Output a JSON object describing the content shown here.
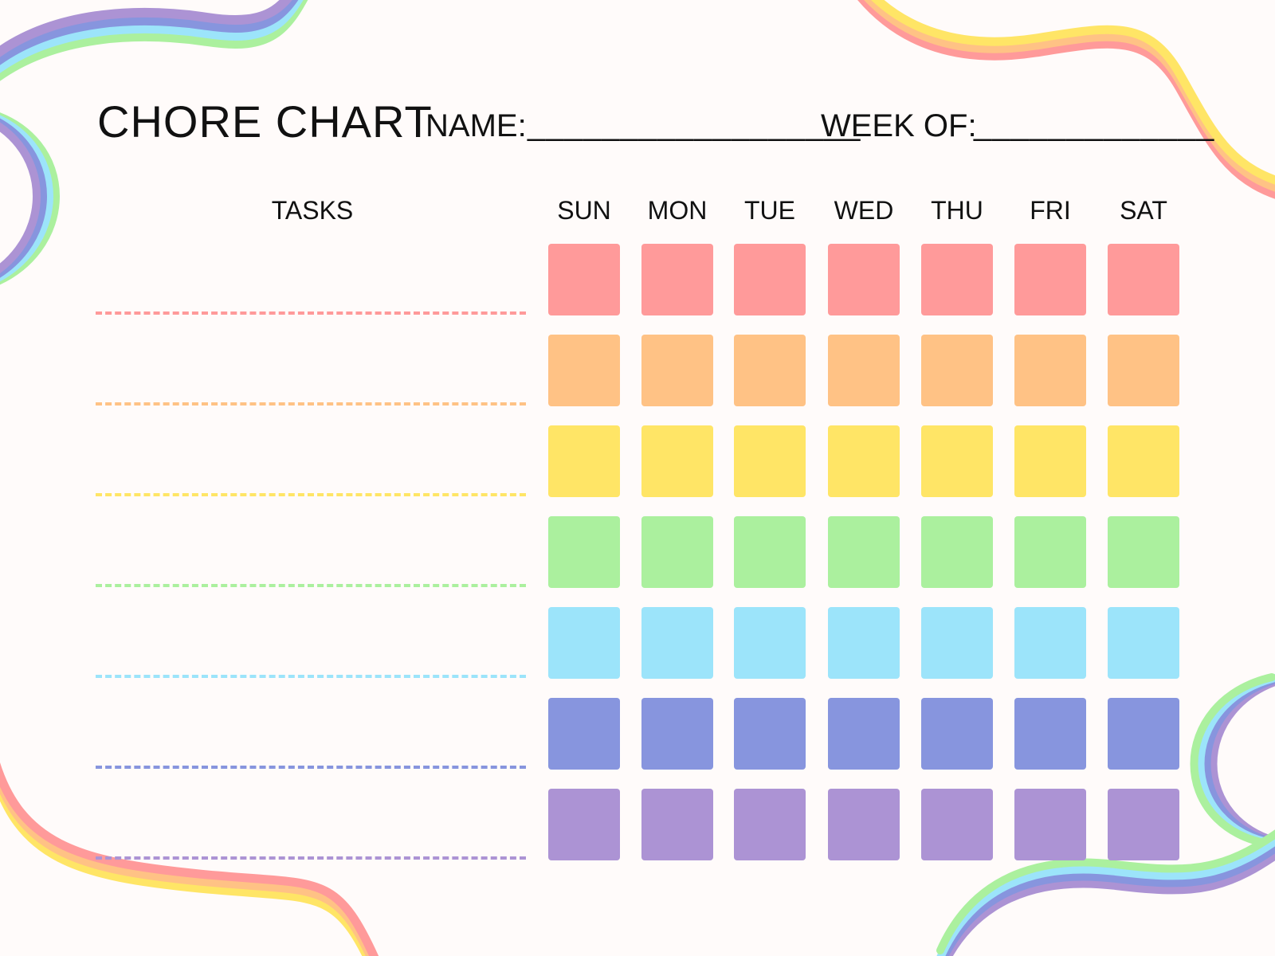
{
  "header": {
    "title": "CHORE CHART",
    "name_label": "NAME:",
    "name_blank": "__________________",
    "week_label": "WEEK OF:",
    "week_blank": "_____________"
  },
  "tasks_header": "TASKS",
  "days": [
    "SUN",
    "MON",
    "TUE",
    "WED",
    "THU",
    "FRI",
    "SAT"
  ],
  "row_colors": [
    "#ff9a9a",
    "#ffc285",
    "#ffe566",
    "#abf09e",
    "#9ce4fa",
    "#8795de",
    "#ac93d4"
  ],
  "background": "#fffbfa"
}
